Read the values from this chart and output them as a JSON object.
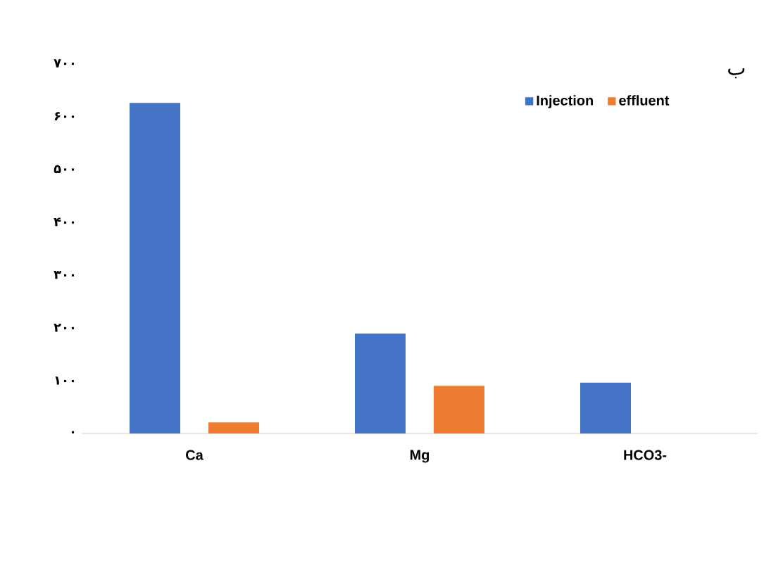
{
  "chart_data": {
    "type": "bar",
    "categories": [
      "Ca",
      "Mg",
      "HCO3-"
    ],
    "series": [
      {
        "name": "Injection",
        "color": "#4472c4",
        "values": [
          625,
          189,
          96
        ]
      },
      {
        "name": "effluent",
        "color": "#ed7d31",
        "values": [
          21,
          90,
          null
        ]
      }
    ],
    "ylim": [
      0,
      700
    ],
    "yticks": [
      {
        "value": 0,
        "label": "۰"
      },
      {
        "value": 100,
        "label": "۱۰۰"
      },
      {
        "value": 200,
        "label": "۲۰۰"
      },
      {
        "value": 300,
        "label": "۳۰۰"
      },
      {
        "value": 400,
        "label": "۴۰۰"
      },
      {
        "value": 500,
        "label": "۵۰۰"
      },
      {
        "value": 600,
        "label": "۶۰۰"
      },
      {
        "value": 700,
        "label": "۷۰۰"
      }
    ],
    "legend": "top right",
    "grid": false,
    "annotations": [
      "ب"
    ]
  }
}
